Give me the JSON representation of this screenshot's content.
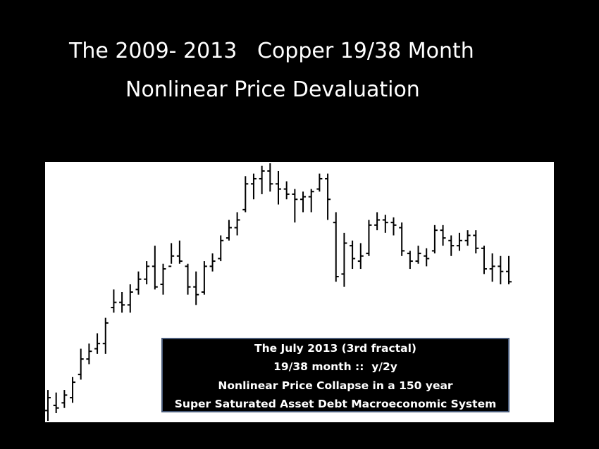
{
  "chart_data": {
    "type": "ohlc",
    "title": "The 2009- 2013   Copper 19/38 Month",
    "subtitle": "Nonlinear Price Devaluation",
    "annotations": [
      "The July 2013 (3rd fractal)",
      "19/38 month ::  y/2y",
      "Nonlinear Price Collapse in a 150 year",
      "Super Saturated Asset Debt Macroeconomic System"
    ],
    "ylim": [
      0,
      100
    ],
    "color": "#000000",
    "open": [
      4,
      6,
      7,
      9,
      18,
      24,
      28,
      30,
      44,
      46,
      45,
      51,
      55,
      60,
      53,
      60,
      64,
      60,
      52,
      50,
      60,
      63,
      71,
      75,
      82,
      92,
      94,
      97,
      92,
      90,
      88,
      86,
      87,
      90,
      94,
      77,
      57,
      68,
      62,
      65,
      76,
      78,
      77,
      75,
      65,
      62,
      64,
      66,
      74,
      70,
      68,
      70,
      72,
      67,
      59,
      60,
      58
    ],
    "high": [
      12,
      11,
      12,
      17,
      28,
      30,
      34,
      40,
      51,
      50,
      53,
      58,
      62,
      68,
      61,
      69,
      70,
      61,
      58,
      62,
      65,
      72,
      78,
      81,
      95,
      96,
      99,
      100,
      97,
      93,
      90,
      89,
      90,
      96,
      96,
      81,
      73,
      70,
      69,
      78,
      81,
      80,
      79,
      77,
      66,
      68,
      67,
      76,
      76,
      72,
      73,
      74,
      74,
      68,
      65,
      64,
      64
    ],
    "low": [
      0,
      3,
      5,
      7,
      16,
      22,
      26,
      26,
      42,
      42,
      42,
      49,
      53,
      51,
      49,
      61,
      61,
      49,
      45,
      49,
      58,
      62,
      70,
      72,
      81,
      86,
      88,
      89,
      84,
      86,
      77,
      81,
      81,
      89,
      78,
      54,
      52,
      59,
      59,
      64,
      74,
      73,
      72,
      64,
      59,
      61,
      60,
      65,
      68,
      64,
      66,
      68,
      65,
      57,
      54,
      53,
      53
    ],
    "close": [
      9,
      5,
      10,
      15,
      24,
      27,
      30,
      38,
      46,
      45,
      50,
      55,
      60,
      52,
      59,
      64,
      62,
      52,
      49,
      60,
      62,
      70,
      75,
      78,
      92,
      94,
      97,
      92,
      90,
      88,
      86,
      87,
      89,
      94,
      86,
      56,
      69,
      63,
      64,
      76,
      78,
      77,
      76,
      66,
      62,
      65,
      63,
      74,
      71,
      68,
      70,
      72,
      67,
      59,
      60,
      58,
      54
    ]
  }
}
